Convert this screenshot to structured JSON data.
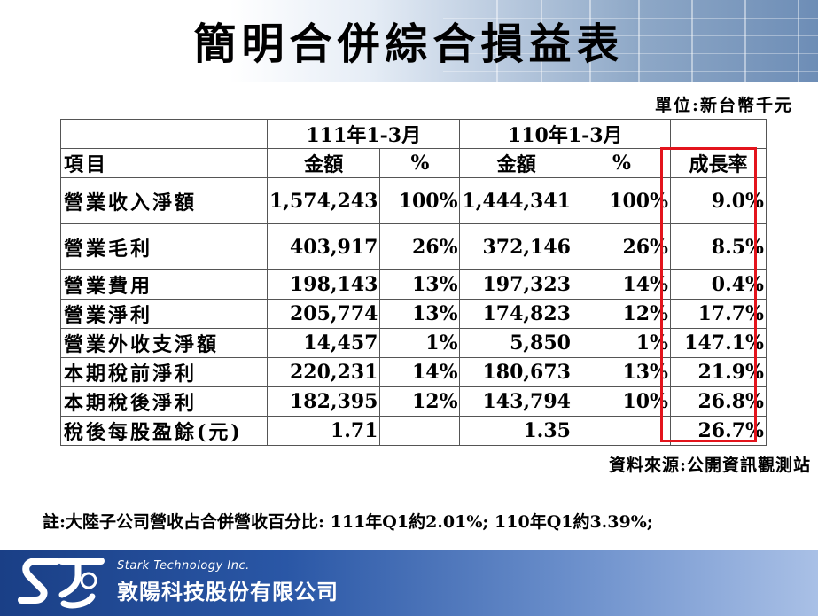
{
  "title": "簡明合併綜合損益表",
  "unit": "單位:新台幣千元",
  "table": {
    "period_headers": [
      "111年1-3月",
      "110年1-3月"
    ],
    "col_headers": [
      "項目",
      "金額",
      "%",
      "金額",
      "%",
      "成長率"
    ],
    "rows": [
      {
        "item": "營業收入淨額",
        "amt_111": "1,574,243",
        "pct_111": "100%",
        "amt_110": "1,444,341",
        "pct_110": "100%",
        "growth": "9.0%"
      },
      {
        "item": "營業毛利",
        "amt_111": "403,917",
        "pct_111": "26%",
        "amt_110": "372,146",
        "pct_110": "26%",
        "growth": "8.5%"
      },
      {
        "item": "營業費用",
        "amt_111": "198,143",
        "pct_111": "13%",
        "amt_110": "197,323",
        "pct_110": "14%",
        "growth": "0.4%"
      },
      {
        "item": "營業淨利",
        "amt_111": "205,774",
        "pct_111": "13%",
        "amt_110": "174,823",
        "pct_110": "12%",
        "growth": "17.7%"
      },
      {
        "item": "營業外收支淨額",
        "amt_111": "14,457",
        "pct_111": "1%",
        "amt_110": "5,850",
        "pct_110": "1%",
        "growth": "147.1%"
      },
      {
        "item": "本期稅前淨利",
        "amt_111": "220,231",
        "pct_111": "14%",
        "amt_110": "180,673",
        "pct_110": "13%",
        "growth": "21.9%"
      },
      {
        "item": "本期稅後淨利",
        "amt_111": "182,395",
        "pct_111": "12%",
        "amt_110": "143,794",
        "pct_110": "10%",
        "growth": "26.8%"
      },
      {
        "item": "稅後每股盈餘(元)",
        "amt_111": "1.71",
        "pct_111": "",
        "amt_110": "1.35",
        "pct_110": "",
        "growth": "26.7%"
      }
    ]
  },
  "source": "資料來源:公開資訊觀測站",
  "note": "註:大陸子公司營收占合併營收百分比: 111年Q1約2.01%; 110年Q1約3.39%;",
  "footer": {
    "company_en": "Stark Technology Inc.",
    "company_zh": "敦陽科技股份有限公司",
    "logo_icon": "stark-logo-icon"
  },
  "colors": {
    "highlight_box": "#e3141c",
    "footer_blue": "#1a3f86"
  }
}
